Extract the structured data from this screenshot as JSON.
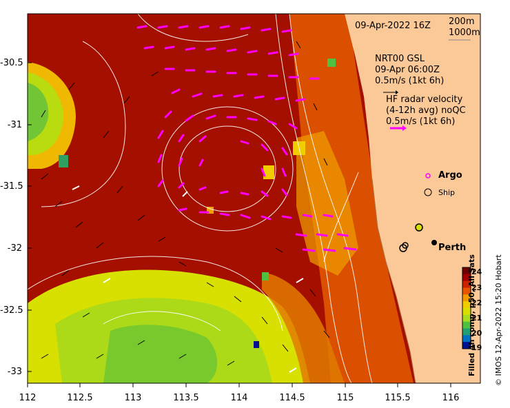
{
  "header": {
    "date_time": "09-Apr-2022 16Z",
    "scale_200m": "200m",
    "scale_1000m": "1000m"
  },
  "legend": {
    "gsl_line1": "NRT00 GSL",
    "gsl_line2": "09-Apr 06:00Z",
    "gsl_line3": "0.5m/s (1kt 6h)",
    "hf_line1": "HF radar velocity",
    "hf_line2": "(4-12h avg) noQC",
    "hf_line3": "0.5m/s (1kt 6h)",
    "argo_label": "Argo",
    "ship_label": "Ship"
  },
  "places": {
    "perth": "Perth"
  },
  "axes": {
    "y_ticks": [
      "-30.5",
      "-31",
      "-31.5",
      "-32",
      "-32.5",
      "-33"
    ],
    "x_ticks": [
      "112",
      "112.5",
      "113",
      "113.5",
      "114",
      "114.5",
      "115",
      "115.5",
      "116"
    ]
  },
  "colorbar": {
    "title": "Filled 4h comp, p50, All Sats",
    "ticks": [
      "24",
      "23",
      "22",
      "21",
      "20",
      "19"
    ],
    "colors": [
      "#6e0000",
      "#a00000",
      "#cc2200",
      "#e85500",
      "#f09a00",
      "#f0cc00",
      "#d8e000",
      "#a8dc20",
      "#50c040",
      "#20a070",
      "#0070c0",
      "#001090"
    ]
  },
  "credit": "© IMOS 12-Apr-2022 15:20 Hobart",
  "colors": {
    "land": "#fbc897",
    "warm_sst": "#a50f00",
    "cool_sst": "#d7e000",
    "hf_vector": "#ff00ff"
  }
}
